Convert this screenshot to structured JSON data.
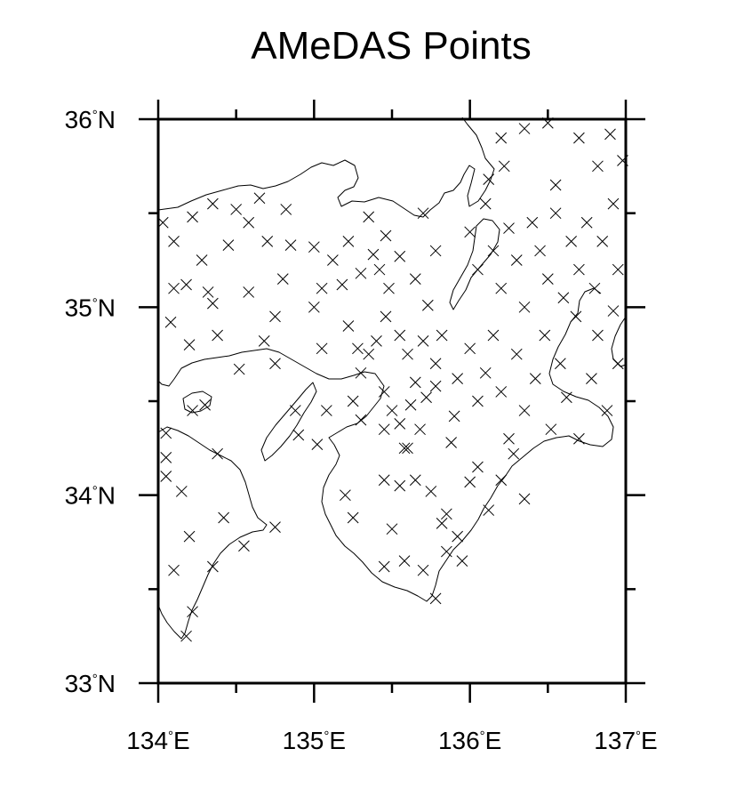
{
  "title": "AMeDAS Points",
  "axes": {
    "lon_min": 134.0,
    "lon_max": 137.0,
    "lat_min": 33.0,
    "lat_max": 36.0,
    "x_ticks": [
      {
        "value": 134,
        "label": "134",
        "suffix": "E"
      },
      {
        "value": 135,
        "label": "135",
        "suffix": "E"
      },
      {
        "value": 136,
        "label": "136",
        "suffix": "E"
      },
      {
        "value": 137,
        "label": "137",
        "suffix": "E"
      }
    ],
    "y_ticks": [
      {
        "value": 36,
        "label": "36",
        "suffix": "N"
      },
      {
        "value": 35,
        "label": "35",
        "suffix": "N"
      },
      {
        "value": 34,
        "label": "34",
        "suffix": "N"
      },
      {
        "value": 33,
        "label": "33",
        "suffix": "N"
      }
    ],
    "x_minor": [
      134.5,
      135.5,
      136.5
    ],
    "y_minor": [
      33.5,
      34.5,
      35.5
    ],
    "degree_symbol": "°"
  },
  "chart_data": {
    "type": "scatter",
    "marker": "x",
    "points": [
      [
        134.03,
        35.45
      ],
      [
        134.1,
        35.35
      ],
      [
        134.22,
        35.48
      ],
      [
        134.28,
        35.25
      ],
      [
        134.35,
        35.55
      ],
      [
        134.45,
        35.33
      ],
      [
        134.5,
        35.52
      ],
      [
        134.58,
        35.45
      ],
      [
        134.65,
        35.58
      ],
      [
        134.7,
        35.35
      ],
      [
        134.82,
        35.52
      ],
      [
        134.85,
        35.33
      ],
      [
        134.1,
        35.1
      ],
      [
        134.18,
        35.12
      ],
      [
        134.32,
        35.08
      ],
      [
        134.35,
        35.02
      ],
      [
        134.58,
        35.08
      ],
      [
        134.8,
        35.15
      ],
      [
        134.08,
        34.92
      ],
      [
        134.2,
        34.8
      ],
      [
        134.38,
        34.85
      ],
      [
        134.68,
        34.82
      ],
      [
        134.75,
        34.95
      ],
      [
        135.0,
        35.32
      ],
      [
        135.05,
        35.1
      ],
      [
        135.12,
        35.25
      ],
      [
        135.18,
        35.12
      ],
      [
        135.22,
        35.35
      ],
      [
        135.3,
        35.18
      ],
      [
        135.35,
        35.48
      ],
      [
        135.38,
        35.28
      ],
      [
        135.42,
        35.2
      ],
      [
        135.46,
        35.38
      ],
      [
        135.48,
        35.1
      ],
      [
        135.55,
        35.27
      ],
      [
        135.65,
        35.15
      ],
      [
        135.7,
        35.5
      ],
      [
        135.78,
        35.3
      ],
      [
        135.0,
        35.0
      ],
      [
        135.05,
        34.78
      ],
      [
        135.22,
        34.9
      ],
      [
        135.28,
        34.78
      ],
      [
        135.3,
        34.65
      ],
      [
        135.35,
        34.75
      ],
      [
        135.4,
        34.82
      ],
      [
        135.46,
        34.95
      ],
      [
        135.55,
        34.85
      ],
      [
        135.6,
        34.75
      ],
      [
        135.65,
        34.6
      ],
      [
        135.7,
        34.82
      ],
      [
        135.73,
        35.01
      ],
      [
        135.78,
        34.7
      ],
      [
        135.82,
        34.85
      ],
      [
        134.22,
        34.45
      ],
      [
        134.3,
        34.48
      ],
      [
        134.52,
        34.67
      ],
      [
        134.88,
        34.45
      ],
      [
        134.75,
        34.7
      ],
      [
        134.05,
        34.33
      ],
      [
        134.05,
        34.2
      ],
      [
        134.05,
        34.1
      ],
      [
        134.15,
        34.02
      ],
      [
        134.38,
        34.22
      ],
      [
        134.42,
        33.88
      ],
      [
        134.55,
        33.73
      ],
      [
        134.75,
        33.83
      ],
      [
        134.1,
        33.6
      ],
      [
        134.2,
        33.78
      ],
      [
        134.22,
        33.38
      ],
      [
        134.18,
        33.25
      ],
      [
        134.35,
        33.62
      ],
      [
        134.9,
        34.32
      ],
      [
        135.02,
        34.27
      ],
      [
        135.08,
        34.45
      ],
      [
        135.25,
        34.5
      ],
      [
        135.3,
        34.4
      ],
      [
        135.45,
        34.55
      ],
      [
        135.5,
        34.45
      ],
      [
        135.55,
        34.38
      ],
      [
        135.62,
        34.48
      ],
      [
        135.68,
        34.35
      ],
      [
        135.72,
        34.52
      ],
      [
        135.78,
        34.58
      ],
      [
        135.88,
        34.28
      ],
      [
        135.92,
        34.62
      ],
      [
        135.9,
        34.42
      ],
      [
        135.45,
        34.35
      ],
      [
        135.58,
        34.25
      ],
      [
        135.2,
        34.0
      ],
      [
        135.25,
        33.88
      ],
      [
        135.45,
        34.08
      ],
      [
        135.55,
        34.05
      ],
      [
        135.6,
        34.25
      ],
      [
        135.65,
        34.08
      ],
      [
        135.75,
        34.02
      ],
      [
        135.85,
        33.9
      ],
      [
        135.92,
        33.78
      ],
      [
        135.95,
        33.65
      ],
      [
        136.0,
        34.07
      ],
      [
        135.5,
        33.82
      ],
      [
        135.45,
        33.62
      ],
      [
        135.58,
        33.65
      ],
      [
        135.7,
        33.6
      ],
      [
        135.78,
        33.45
      ],
      [
        135.85,
        33.7
      ],
      [
        135.82,
        33.85
      ],
      [
        136.0,
        35.4
      ],
      [
        136.05,
        35.2
      ],
      [
        136.1,
        35.55
      ],
      [
        136.15,
        35.3
      ],
      [
        136.2,
        35.1
      ],
      [
        136.25,
        35.42
      ],
      [
        136.3,
        35.25
      ],
      [
        136.35,
        35.0
      ],
      [
        136.4,
        35.45
      ],
      [
        136.45,
        35.3
      ],
      [
        136.5,
        35.15
      ],
      [
        136.55,
        35.5
      ],
      [
        136.6,
        35.05
      ],
      [
        136.65,
        35.35
      ],
      [
        136.7,
        35.2
      ],
      [
        136.75,
        35.45
      ],
      [
        136.8,
        35.1
      ],
      [
        136.85,
        35.35
      ],
      [
        136.92,
        35.55
      ],
      [
        136.95,
        35.2
      ],
      [
        136.2,
        35.9
      ],
      [
        136.22,
        35.75
      ],
      [
        136.35,
        35.95
      ],
      [
        136.5,
        35.98
      ],
      [
        136.55,
        35.65
      ],
      [
        136.7,
        35.9
      ],
      [
        136.82,
        35.75
      ],
      [
        136.9,
        35.92
      ],
      [
        136.98,
        35.78
      ],
      [
        136.12,
        35.68
      ],
      [
        136.0,
        34.78
      ],
      [
        136.05,
        34.5
      ],
      [
        136.1,
        34.65
      ],
      [
        136.15,
        34.85
      ],
      [
        136.2,
        34.55
      ],
      [
        136.25,
        34.3
      ],
      [
        136.3,
        34.75
      ],
      [
        136.35,
        34.45
      ],
      [
        136.42,
        34.62
      ],
      [
        136.48,
        34.85
      ],
      [
        136.52,
        34.35
      ],
      [
        136.58,
        34.7
      ],
      [
        136.62,
        34.52
      ],
      [
        136.68,
        34.95
      ],
      [
        136.7,
        34.3
      ],
      [
        136.78,
        34.62
      ],
      [
        136.82,
        34.85
      ],
      [
        136.88,
        34.45
      ],
      [
        136.92,
        34.98
      ],
      [
        136.95,
        34.7
      ],
      [
        136.05,
        34.15
      ],
      [
        136.12,
        33.92
      ],
      [
        136.2,
        34.08
      ],
      [
        136.28,
        34.22
      ],
      [
        136.35,
        33.98
      ]
    ]
  }
}
